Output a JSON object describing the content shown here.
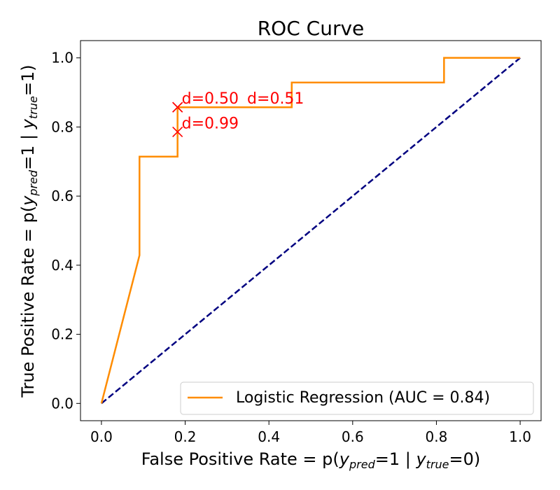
{
  "chart_data": {
    "type": "line",
    "title": "ROC Curve",
    "xlabel": {
      "prefix": "False Positive Rate = p(",
      "y": "y",
      "sub1": "pred",
      "mid": "=1 | ",
      "y2": "y",
      "sub2": "true",
      "suffix": "=0)"
    },
    "ylabel": {
      "prefix": "True Positive Rate = p(",
      "y": "y",
      "sub1": "pred",
      "mid": "=1 | ",
      "y2": "y",
      "sub2": "true",
      "suffix": "=1)"
    },
    "xlim": [
      -0.05,
      1.05
    ],
    "ylim": [
      -0.05,
      1.05
    ],
    "xticks": [
      0.0,
      0.2,
      0.4,
      0.6,
      0.8,
      1.0
    ],
    "yticks": [
      0.0,
      0.2,
      0.4,
      0.6,
      0.8,
      1.0
    ],
    "xtick_labels": [
      "0.0",
      "0.2",
      "0.4",
      "0.6",
      "0.8",
      "1.0"
    ],
    "ytick_labels": [
      "0.0",
      "0.2",
      "0.4",
      "0.6",
      "0.8",
      "1.0"
    ],
    "grid": false,
    "legend_placement": "lower-right",
    "series": [
      {
        "name": "Logistic Regression (AUC = 0.84)",
        "color": "#ff8c00",
        "x": [
          0,
          0.0909,
          0.0909,
          0.1818,
          0.1818,
          0.4545,
          0.4545,
          0.8182,
          0.8182,
          1.0
        ],
        "y": [
          0,
          0.4286,
          0.7143,
          0.7143,
          0.8571,
          0.8571,
          0.9286,
          0.9286,
          1.0,
          1.0
        ]
      },
      {
        "color": "#000080",
        "style": "dashed",
        "x": [
          0,
          1
        ],
        "y": [
          0,
          1
        ]
      }
    ],
    "annotations": [
      {
        "x": 0.1818,
        "y": 0.8571,
        "text": "d=0.50",
        "color": "#ff0000"
      },
      {
        "x": 0.1818,
        "y": 0.8571,
        "text": "d=0.51",
        "color": "#ff0000"
      },
      {
        "x": 0.1818,
        "y": 0.7857,
        "text": "d=0.99",
        "color": "#ff0000"
      }
    ]
  }
}
